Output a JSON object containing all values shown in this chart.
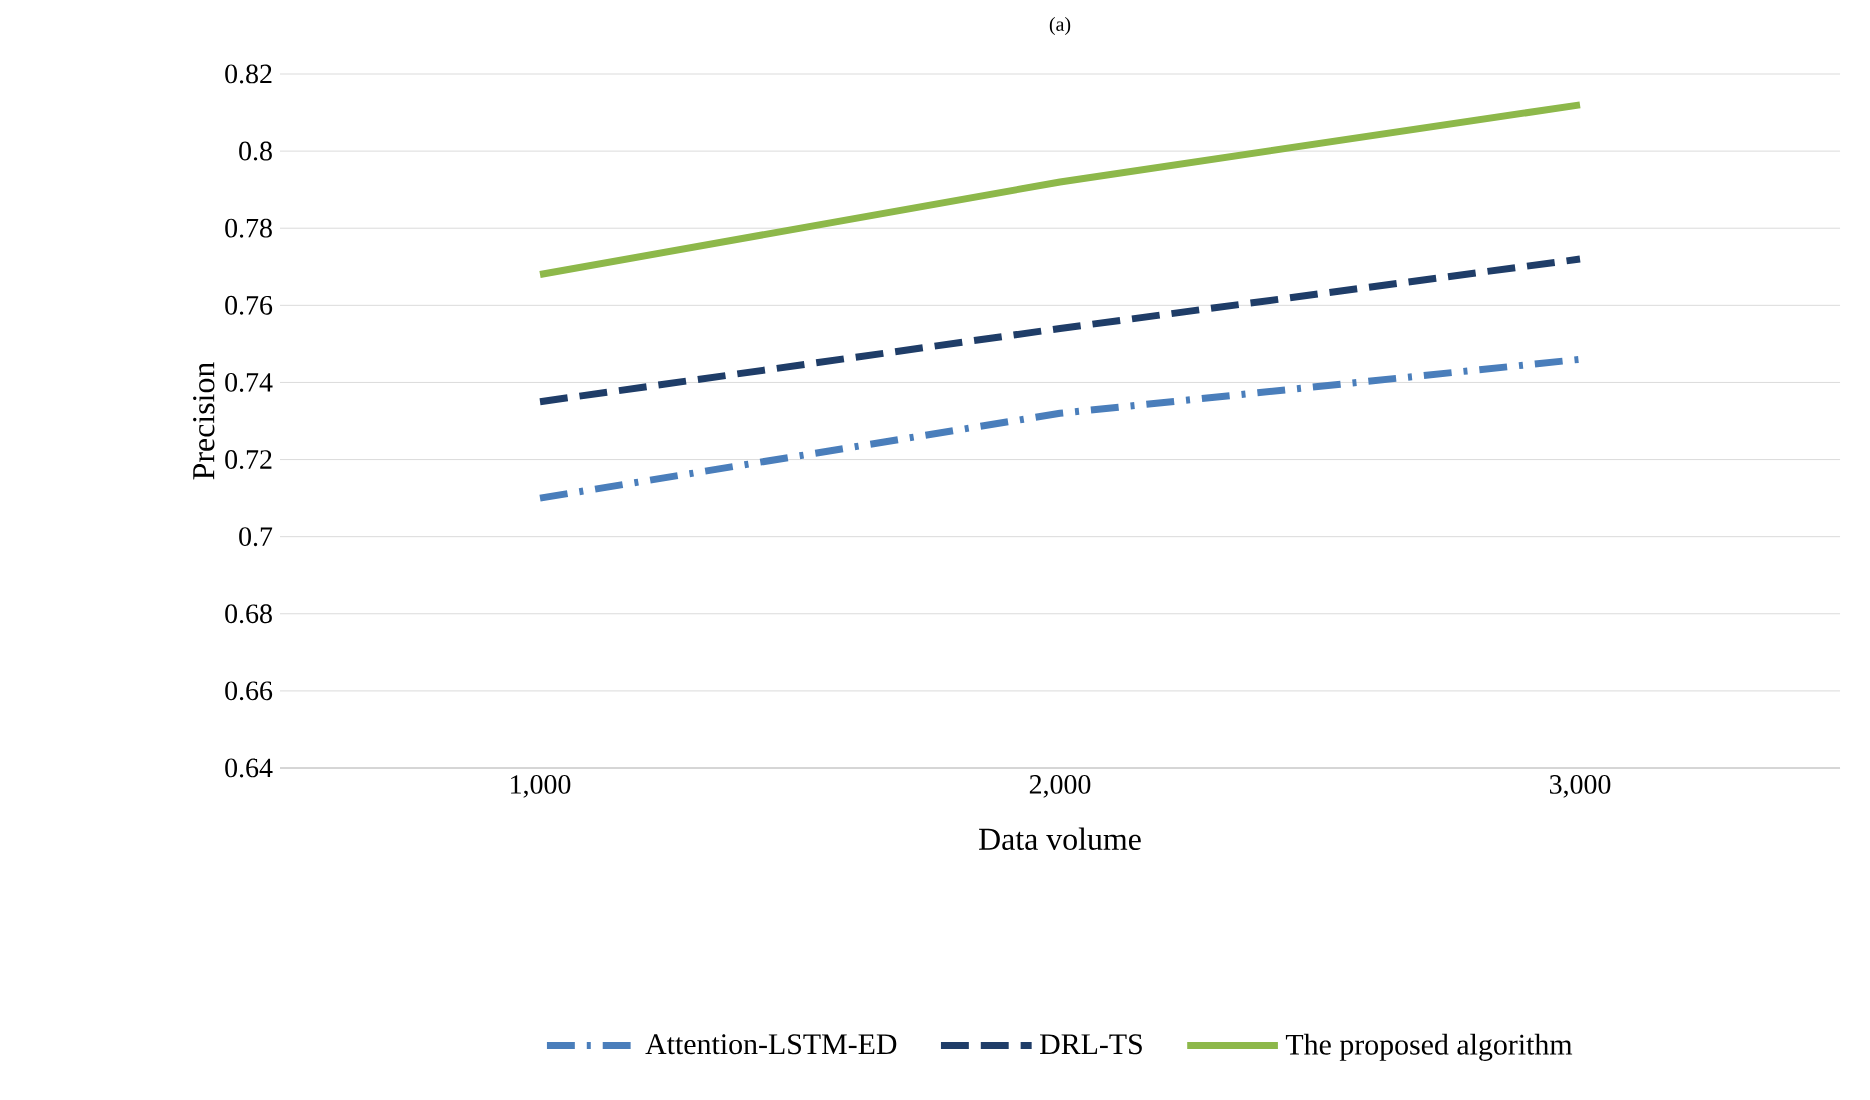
{
  "chart_data": {
    "type": "line",
    "title": "(a)",
    "xlabel": "Data volume",
    "ylabel": "Precision",
    "categories": [
      "1,000",
      "2,000",
      "3,000"
    ],
    "series": [
      {
        "name": "Attention-LSTM-ED",
        "color": "#4a7ebb",
        "values": [
          0.71,
          0.732,
          0.746
        ],
        "line_style": "dashdot"
      },
      {
        "name": "DRL-TS",
        "color": "#1f3d68",
        "values": [
          0.735,
          0.754,
          0.772
        ],
        "line_style": "dashed"
      },
      {
        "name": "The proposed algorithm",
        "color": "#8db84a",
        "values": [
          0.768,
          0.792,
          0.812
        ],
        "line_style": "solid"
      }
    ],
    "ylim": [
      0.64,
      0.82
    ],
    "yticks": [
      0.64,
      0.66,
      0.68,
      0.7,
      0.72,
      0.74,
      0.76,
      0.78,
      0.8,
      0.82
    ],
    "grid": "y",
    "legend": "bottom",
    "marker": "none"
  }
}
